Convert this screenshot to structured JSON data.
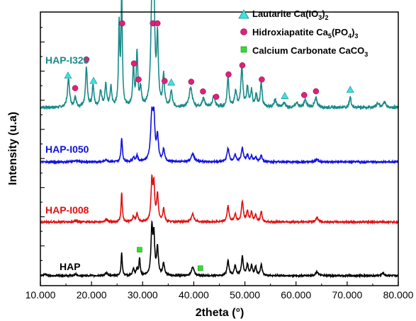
{
  "chart_data": {
    "type": "line",
    "title": "",
    "xlabel": "2theta (°)",
    "ylabel": "Intensity (u.a)",
    "xlim": [
      10,
      80
    ],
    "x_ticks": [
      "10.000",
      "20.000",
      "30.000",
      "40.000",
      "50.000",
      "60.000",
      "70.000",
      "80.000"
    ],
    "y_ticks_labeled": false,
    "grid": false,
    "legend_placement": "top-right",
    "colors": {
      "HAP-I325": "#1a8a8a",
      "HAP-I050": "#1010e0",
      "HAP-I008": "#e01010",
      "HAP": "#000000",
      "lautarite_marker": "#3fe0e0",
      "hydroxyapatite_marker": "#e0207a",
      "carbonate_marker": "#33dd33"
    },
    "series": [
      {
        "name": "HAP-I325",
        "baseline": 0,
        "peaks": [
          [
            15.5,
            0.32,
            0.25
          ],
          [
            16.8,
            0.12,
            0.2
          ],
          [
            19.0,
            0.45,
            0.2
          ],
          [
            20.3,
            0.25,
            0.2
          ],
          [
            21.8,
            0.18,
            0.25
          ],
          [
            22.8,
            0.25,
            0.2
          ],
          [
            23.8,
            0.22,
            0.2
          ],
          [
            25.4,
            0.9,
            0.15
          ],
          [
            25.9,
            1.25,
            0.15
          ],
          [
            28.2,
            0.45,
            0.18
          ],
          [
            28.9,
            0.6,
            0.18
          ],
          [
            29.6,
            0.2,
            0.2
          ],
          [
            31.8,
            1.1,
            0.25
          ],
          [
            32.2,
            1.15,
            0.2
          ],
          [
            32.9,
            0.75,
            0.2
          ],
          [
            34.1,
            0.35,
            0.2
          ],
          [
            35.6,
            0.18,
            0.2
          ],
          [
            39.4,
            0.22,
            0.35
          ],
          [
            41.9,
            0.1,
            0.3
          ],
          [
            43.9,
            0.12,
            0.3
          ],
          [
            46.7,
            0.35,
            0.2
          ],
          [
            48.2,
            0.18,
            0.25
          ],
          [
            49.4,
            0.45,
            0.22
          ],
          [
            50.5,
            0.22,
            0.22
          ],
          [
            51.3,
            0.18,
            0.2
          ],
          [
            52.2,
            0.15,
            0.2
          ],
          [
            53.2,
            0.28,
            0.2
          ],
          [
            55.9,
            0.08,
            0.3
          ],
          [
            57.7,
            0.05,
            0.3
          ],
          [
            60.2,
            0.05,
            0.3
          ],
          [
            61.8,
            0.08,
            0.3
          ],
          [
            63.9,
            0.1,
            0.3
          ],
          [
            70.6,
            0.12,
            0.2
          ],
          [
            76.0,
            0.05,
            0.3
          ],
          [
            77.3,
            0.06,
            0.3
          ]
        ]
      },
      {
        "name": "HAP-I050",
        "baseline": 0,
        "peaks": [
          [
            16.9,
            0.03,
            0.3
          ],
          [
            22.9,
            0.04,
            0.3
          ],
          [
            25.9,
            0.45,
            0.16
          ],
          [
            28.2,
            0.08,
            0.2
          ],
          [
            28.9,
            0.12,
            0.2
          ],
          [
            31.8,
            0.85,
            0.28
          ],
          [
            32.2,
            0.7,
            0.22
          ],
          [
            32.9,
            0.45,
            0.22
          ],
          [
            34.1,
            0.22,
            0.22
          ],
          [
            39.8,
            0.15,
            0.35
          ],
          [
            46.7,
            0.25,
            0.25
          ],
          [
            48.1,
            0.12,
            0.25
          ],
          [
            49.5,
            0.25,
            0.25
          ],
          [
            50.5,
            0.12,
            0.22
          ],
          [
            51.3,
            0.1,
            0.22
          ],
          [
            52.1,
            0.08,
            0.22
          ],
          [
            53.2,
            0.12,
            0.22
          ],
          [
            64.1,
            0.05,
            0.3
          ]
        ]
      },
      {
        "name": "HAP-I008",
        "baseline": 0,
        "peaks": [
          [
            16.9,
            0.03,
            0.3
          ],
          [
            22.9,
            0.05,
            0.3
          ],
          [
            25.9,
            0.55,
            0.14
          ],
          [
            28.2,
            0.1,
            0.2
          ],
          [
            28.9,
            0.15,
            0.2
          ],
          [
            31.8,
            0.75,
            0.2
          ],
          [
            32.2,
            0.65,
            0.18
          ],
          [
            32.9,
            0.5,
            0.2
          ],
          [
            34.1,
            0.25,
            0.2
          ],
          [
            39.8,
            0.15,
            0.3
          ],
          [
            46.7,
            0.3,
            0.22
          ],
          [
            48.1,
            0.15,
            0.22
          ],
          [
            49.5,
            0.38,
            0.22
          ],
          [
            50.5,
            0.2,
            0.2
          ],
          [
            51.3,
            0.18,
            0.2
          ],
          [
            52.1,
            0.12,
            0.2
          ],
          [
            53.2,
            0.2,
            0.2
          ],
          [
            64.1,
            0.08,
            0.3
          ]
        ]
      },
      {
        "name": "HAP",
        "baseline": 0,
        "peaks": [
          [
            10.9,
            0.03,
            0.4
          ],
          [
            16.9,
            0.03,
            0.3
          ],
          [
            22.9,
            0.05,
            0.3
          ],
          [
            25.9,
            0.45,
            0.14
          ],
          [
            28.2,
            0.12,
            0.2
          ],
          [
            28.9,
            0.12,
            0.2
          ],
          [
            29.4,
            0.35,
            0.14
          ],
          [
            31.8,
            0.95,
            0.2
          ],
          [
            32.2,
            0.75,
            0.18
          ],
          [
            32.9,
            0.55,
            0.2
          ],
          [
            34.1,
            0.25,
            0.2
          ],
          [
            39.8,
            0.18,
            0.3
          ],
          [
            46.7,
            0.3,
            0.22
          ],
          [
            48.1,
            0.2,
            0.22
          ],
          [
            49.5,
            0.38,
            0.22
          ],
          [
            50.5,
            0.22,
            0.2
          ],
          [
            51.3,
            0.2,
            0.2
          ],
          [
            52.1,
            0.18,
            0.2
          ],
          [
            53.2,
            0.22,
            0.2
          ],
          [
            64.1,
            0.08,
            0.3
          ],
          [
            77.0,
            0.05,
            0.3
          ]
        ]
      }
    ],
    "series_labels": [
      "HAP-I325",
      "HAP-I050",
      "HAP-I008",
      "HAP"
    ],
    "legend": [
      {
        "marker": "triangle",
        "label": "Lautarite Ca(IO",
        "sub1": "3",
        "mid": ")",
        "sub2": "2",
        "tail": ""
      },
      {
        "marker": "circle",
        "label": "Hidroxiapatite Ca",
        "sub1": "5",
        "mid": "(PO",
        "sub2": "4",
        "tail": ")",
        "sub3": "3"
      },
      {
        "marker": "square",
        "label": "Calcium Carbonate  CaCO",
        "sub1": "3",
        "mid": "",
        "sub2": "",
        "tail": ""
      }
    ],
    "annotations": {
      "lautarite_triangles_x": [
        15.4,
        20.4,
        35.6,
        57.8,
        70.6
      ],
      "hydroxyapatite_circles_x": [
        16.8,
        19.0,
        26.0,
        28.3,
        29.2,
        32.0,
        32.9,
        34.3,
        39.5,
        41.8,
        44.4,
        46.8,
        49.5,
        53.3,
        61.6,
        63.9
      ],
      "carbonate_squares_x": [
        29.4,
        41.3
      ]
    }
  }
}
